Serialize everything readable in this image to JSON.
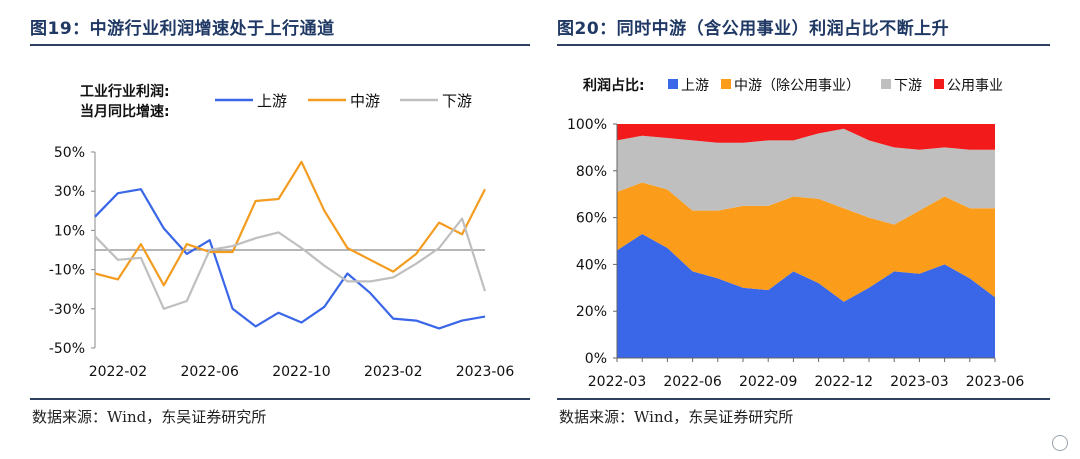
{
  "left": {
    "title": "图19：中游行业利润增速处于上行通道",
    "source": "数据来源：Wind，东吴证券研究所"
  },
  "right": {
    "title": "图20：同时中游（含公用事业）利润占比不断上升",
    "source": "数据来源：Wind，东吴证券研究所"
  },
  "chart_data": [
    {
      "type": "line",
      "legend_title": [
        "工业行业利润:",
        "当月同比增速:"
      ],
      "legend_position": "top",
      "x": [
        "2022-01",
        "2022-02",
        "2022-03",
        "2022-04",
        "2022-05",
        "2022-06",
        "2022-07",
        "2022-08",
        "2022-09",
        "2022-10",
        "2022-11",
        "2022-12",
        "2023-01",
        "2023-02",
        "2023-03",
        "2023-04",
        "2023-05",
        "2023-06"
      ],
      "x_tick_labels": [
        "2022-02",
        "2022-06",
        "2022-10",
        "2023-02",
        "2023-06"
      ],
      "y_tick_labels": [
        "50%",
        "30%",
        "10%",
        "-10%",
        "-30%",
        "-50%"
      ],
      "ylim": [
        -50,
        50
      ],
      "y_ticks": [
        -50,
        -30,
        -10,
        10,
        30,
        50
      ],
      "unit": "%",
      "zero_line": true,
      "grid": false,
      "series": [
        {
          "name": "上游",
          "color": "#3a66e8",
          "values": [
            17,
            29,
            31,
            11,
            -2,
            5,
            -30,
            -39,
            -32,
            -37,
            -29,
            -12,
            -22,
            -35,
            -36,
            -40,
            -36,
            -34
          ]
        },
        {
          "name": "中游",
          "color": "#f39c1f",
          "values": [
            -12,
            -15,
            3,
            -18,
            3,
            -1,
            -1,
            25,
            26,
            45,
            20,
            1,
            -5,
            -11,
            -2,
            14,
            8,
            31
          ]
        },
        {
          "name": "下游",
          "color": "#bfbfbf",
          "values": [
            7,
            -5,
            -4,
            -30,
            -26,
            0,
            2,
            6,
            9,
            1,
            -8,
            -16,
            -16,
            -14,
            -7,
            1,
            16,
            -21
          ]
        }
      ]
    },
    {
      "type": "area",
      "stacked": true,
      "legend_title": "利润占比:",
      "legend_position": "top",
      "x": [
        "2022-03",
        "2022-04",
        "2022-05",
        "2022-06",
        "2022-07",
        "2022-08",
        "2022-09",
        "2022-10",
        "2022-11",
        "2022-12",
        "2023-01",
        "2023-02",
        "2023-03",
        "2023-04",
        "2023-05",
        "2023-06"
      ],
      "x_tick_labels": [
        "2022-03",
        "2022-06",
        "2022-09",
        "2022-12",
        "2023-03",
        "2023-06"
      ],
      "y_tick_labels": [
        "0%",
        "20%",
        "40%",
        "60%",
        "80%",
        "100%"
      ],
      "ylim": [
        0,
        100
      ],
      "unit": "%",
      "grid": false,
      "series": [
        {
          "name": "上游",
          "color": "#3a66e8",
          "values": [
            46,
            53,
            47,
            37,
            34,
            30,
            29,
            37,
            32,
            24,
            30,
            37,
            36,
            40,
            34,
            26
          ]
        },
        {
          "name": "中游（除公用事业）",
          "color": "#fb9d1a",
          "values": [
            25,
            22,
            25,
            26,
            29,
            35,
            36,
            32,
            36,
            40,
            30,
            20,
            27,
            29,
            30,
            38
          ]
        },
        {
          "name": "下游",
          "color": "#bfbfbf",
          "values": [
            22,
            20,
            22,
            30,
            29,
            27,
            28,
            24,
            28,
            34,
            33,
            33,
            26,
            21,
            25,
            25
          ]
        },
        {
          "name": "公用事业",
          "color": "#f21a1a",
          "values": [
            7,
            5,
            6,
            7,
            8,
            8,
            7,
            7,
            4,
            2,
            7,
            10,
            11,
            10,
            11,
            11
          ]
        }
      ]
    }
  ]
}
